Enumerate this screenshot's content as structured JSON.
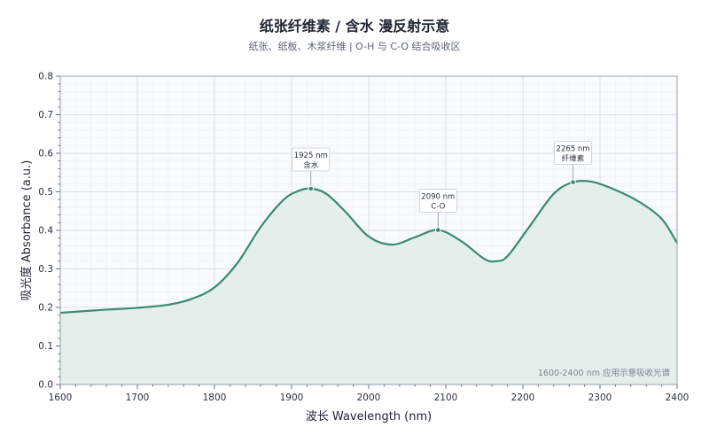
{
  "chart_data": {
    "type": "area",
    "title": "纸张纤维素 / 含水  漫反射示意",
    "subtitle": "纸张、纸板、木浆纤维 | O-H 与 C-O 结合吸收区",
    "xlabel": "波长 Wavelength (nm)",
    "ylabel": "吸光度 Absorbance (a.u.)",
    "xlim": [
      1600,
      2400
    ],
    "ylim": [
      0,
      0.8
    ],
    "x_ticks": [
      1600,
      1700,
      1800,
      1900,
      2000,
      2100,
      2200,
      2300,
      2400
    ],
    "y_ticks": [
      0.0,
      0.1,
      0.2,
      0.3,
      0.4,
      0.5,
      0.6,
      0.7,
      0.8
    ],
    "x_tick_labels": [
      "1600",
      "1700",
      "1800",
      "1900",
      "2000",
      "2100",
      "2200",
      "2300",
      "2400"
    ],
    "y_tick_labels": [
      "0.0",
      "0.1",
      "0.2",
      "0.3",
      "0.4",
      "0.5",
      "0.6",
      "0.7",
      "0.8"
    ],
    "grid": true,
    "line_color": "#3a8a72",
    "fill_color": "#e4eeeb",
    "series": [
      {
        "x": [
          1600,
          1650,
          1700,
          1740,
          1770,
          1800,
          1830,
          1860,
          1890,
          1910,
          1925,
          1945,
          1970,
          2000,
          2030,
          2060,
          2090,
          2120,
          2150,
          2165,
          2180,
          2210,
          2240,
          2265,
          2290,
          2320,
          2350,
          2380,
          2400
        ],
        "y": [
          0.186,
          0.193,
          0.199,
          0.207,
          0.222,
          0.252,
          0.316,
          0.409,
          0.48,
          0.503,
          0.508,
          0.495,
          0.448,
          0.384,
          0.363,
          0.382,
          0.401,
          0.372,
          0.326,
          0.32,
          0.333,
          0.414,
          0.495,
          0.525,
          0.526,
          0.505,
          0.475,
          0.43,
          0.367
        ]
      }
    ],
    "annotations": [
      {
        "x": 1925,
        "y": 0.508,
        "line1": "1925 nm",
        "line2": "含水"
      },
      {
        "x": 2090,
        "y": 0.401,
        "line1": "2090 nm",
        "line2": "C-O"
      },
      {
        "x": 2265,
        "y": 0.525,
        "line1": "2265 nm",
        "line2": "纤维素"
      }
    ],
    "footnote": "1600-2400 nm 应用示意吸收光谱"
  }
}
